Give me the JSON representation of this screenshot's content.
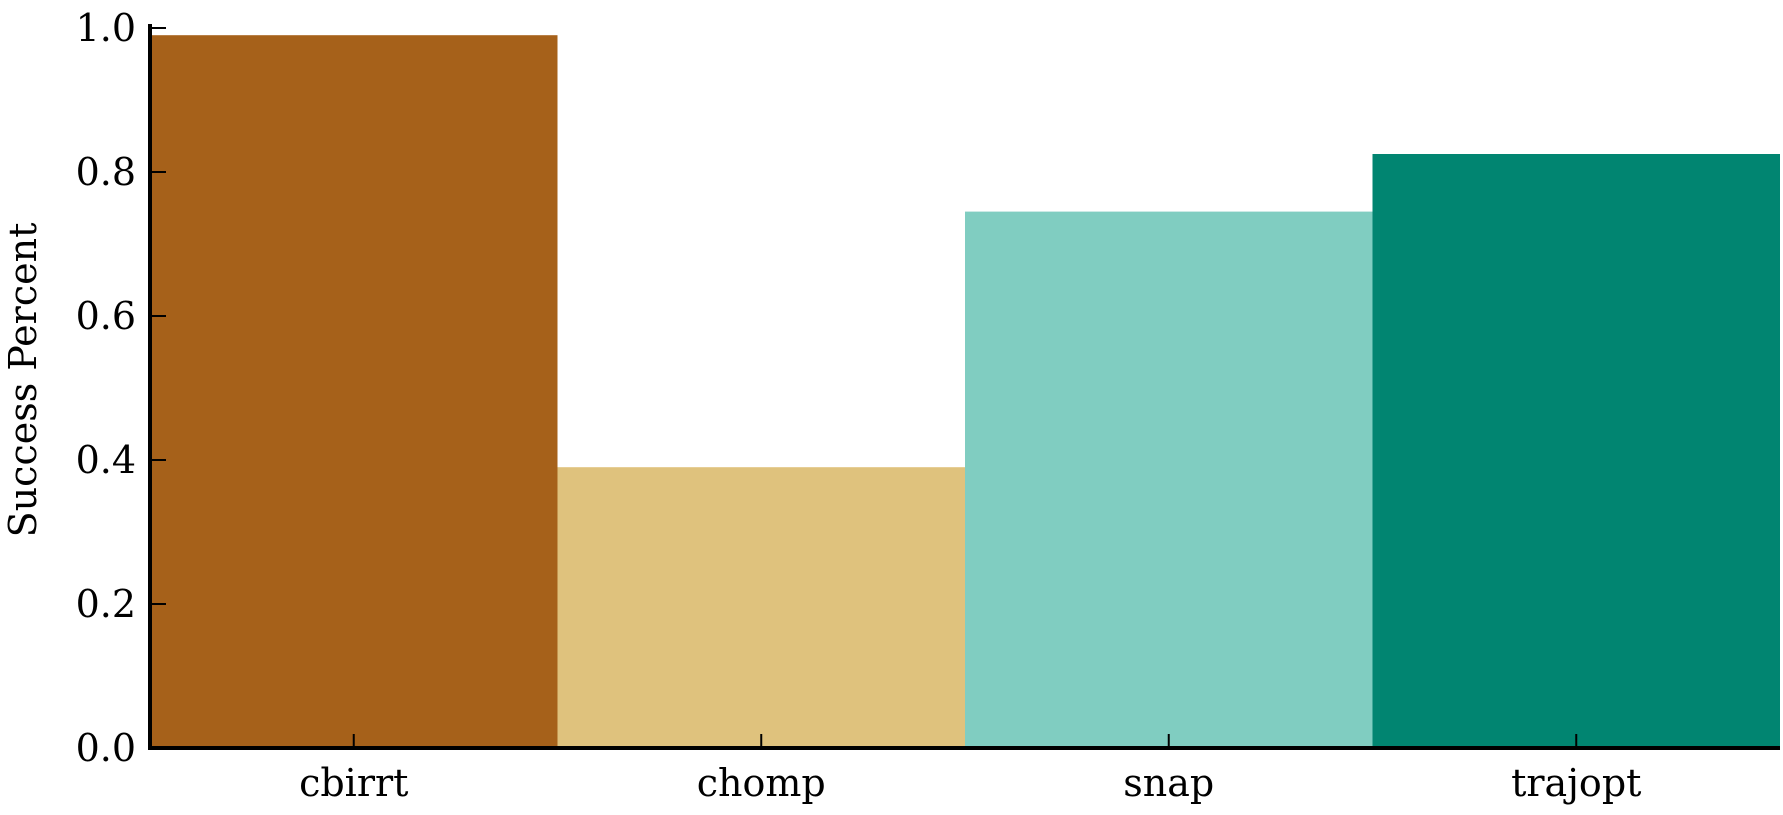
{
  "chart_data": {
    "type": "bar",
    "categories": [
      "cbirrt",
      "chomp",
      "snap",
      "trajopt"
    ],
    "values": [
      0.99,
      0.39,
      0.745,
      0.825
    ],
    "colors": [
      "#a6611a",
      "#dfc27d",
      "#80cdc1",
      "#018571"
    ],
    "title": "",
    "xlabel": "",
    "ylabel": "Success Percent",
    "ylim": [
      0,
      1.0
    ],
    "yticks": [
      "0.0",
      "0.2",
      "0.4",
      "0.6",
      "0.8",
      "1.0"
    ],
    "grid": false,
    "legend": "none"
  }
}
